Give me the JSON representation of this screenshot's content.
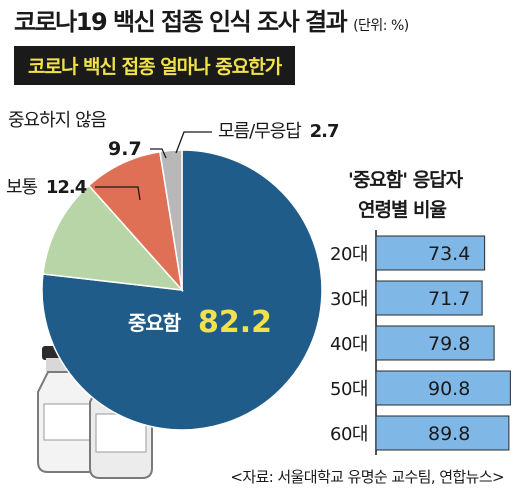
{
  "header": {
    "title": "코로나19 백신 접종 인식 조사 결과",
    "unit": "(단위: %)",
    "subtitle": "코로나 백신 접종 얼마나 중요한가"
  },
  "chart_data": [
    {
      "type": "pie",
      "title": "코로나 백신 접종 얼마나 중요한가",
      "slices": [
        {
          "label": "중요함",
          "value": 82.2,
          "color": "#1f5c8a"
        },
        {
          "label": "보통",
          "value": 12.4,
          "color": "#b8d5a8"
        },
        {
          "label": "중요하지 않음",
          "value": 9.7,
          "color": "#e07055"
        },
        {
          "label": "모름/무응답",
          "value": 2.7,
          "color": "#b8b8b8"
        }
      ],
      "legend": "none"
    },
    {
      "type": "bar",
      "title": "'중요함' 응답자 연령별 비율",
      "title_lines": [
        "'중요함' 응답자",
        "연령별 비율"
      ],
      "categories": [
        "20대",
        "30대",
        "40대",
        "50대",
        "60대"
      ],
      "values": [
        73.4,
        71.7,
        79.8,
        90.8,
        89.8
      ],
      "bar_color": "#7fb8e6",
      "orientation": "horizontal",
      "xlim": [
        0,
        100
      ],
      "grid": false
    }
  ],
  "footer": {
    "source": "<자료: 서울대학교 유명순 교수팀, 연합뉴스>"
  }
}
